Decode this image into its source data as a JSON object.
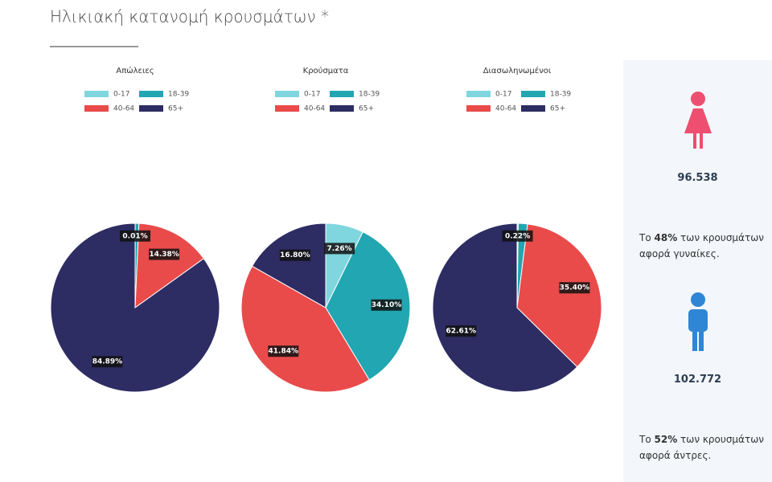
{
  "header": {
    "title": "Ηλικιακή κατανομή κρουσμάτων *"
  },
  "chart_data": [
    {
      "type": "pie",
      "title": "Απώλειες",
      "categories": [
        "0-17",
        "18-39",
        "40-64",
        "65+"
      ],
      "colors": [
        "#7fd6df",
        "#22a6b1",
        "#e94b4b",
        "#2d2c63"
      ],
      "values": [
        0.01,
        0.72,
        14.38,
        84.89
      ],
      "value_labels": [
        "0.01%",
        null,
        "14.38%",
        "84.89%"
      ]
    },
    {
      "type": "pie",
      "title": "Κρούσματα",
      "categories": [
        "0-17",
        "18-39",
        "40-64",
        "65+"
      ],
      "colors": [
        "#7fd6df",
        "#22a6b1",
        "#e94b4b",
        "#2d2c63"
      ],
      "values": [
        7.26,
        34.1,
        41.84,
        16.8
      ],
      "value_labels": [
        "7.26%",
        "34.10%",
        "41.84%",
        "16.80%"
      ]
    },
    {
      "type": "pie",
      "title": "Διασωληνωμένοι",
      "categories": [
        "0-17",
        "18-39",
        "40-64",
        "65+"
      ],
      "colors": [
        "#7fd6df",
        "#22a6b1",
        "#e94b4b",
        "#2d2c63"
      ],
      "values": [
        0.22,
        1.77,
        35.4,
        62.61
      ],
      "value_labels": [
        "0.22%",
        null,
        "35.40%",
        "62.61%"
      ]
    }
  ],
  "sidebar": {
    "women": {
      "count": "96.538",
      "prefix": "Το ",
      "percent": "48%",
      "suffix": " των κρουσμάτων αφορά γυναίκες."
    },
    "men": {
      "count": "102.772",
      "prefix": "Το ",
      "percent": "52%",
      "suffix": " των κρουσμάτων αφορά άντρες."
    }
  }
}
